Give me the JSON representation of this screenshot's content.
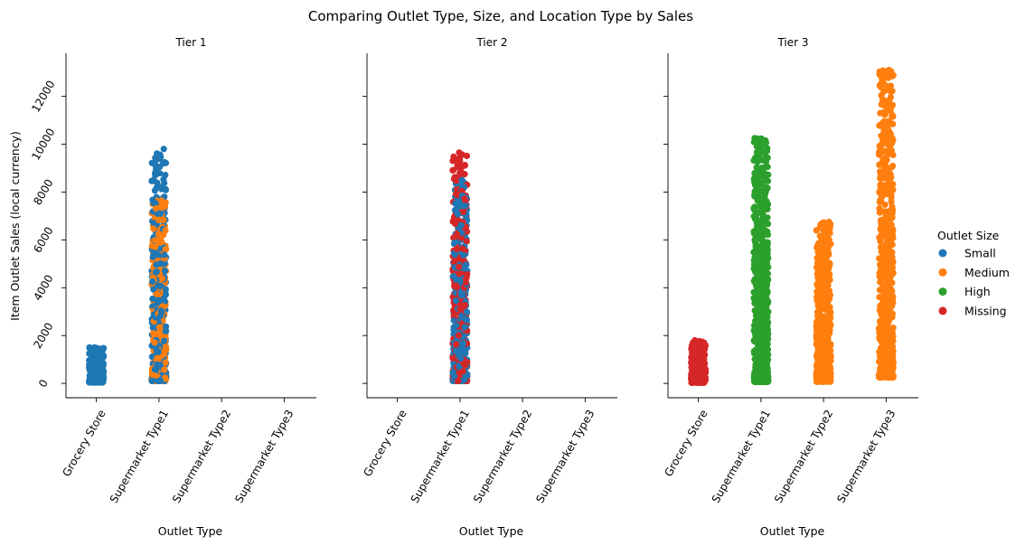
{
  "chart_data": {
    "type": "scatter",
    "subtype": "strip-plot-faceted",
    "title": "Comparing Outlet Type, Size, and Location Type by Sales",
    "xlabel": "Outlet Type",
    "ylabel": "Item Outlet Sales (local currency)",
    "categories": [
      "Grocery Store",
      "Supermarket Type1",
      "Supermarket Type2",
      "Supermarket Type3"
    ],
    "ylim": [
      -600,
      13800
    ],
    "yticks": [
      "0",
      "2000",
      "4000",
      "6000",
      "8000",
      "10000",
      "12000"
    ],
    "legend": {
      "title": "Outlet Size",
      "placement": "right",
      "entries": [
        {
          "name": "Small",
          "color": "#1f77b4"
        },
        {
          "name": "Medium",
          "color": "#ff7f0e"
        },
        {
          "name": "High",
          "color": "#2ca02c"
        },
        {
          "name": "Missing",
          "color": "#d62728"
        }
      ]
    },
    "panels": [
      {
        "title": "Tier 1",
        "groups": [
          {
            "category": "Grocery Store",
            "series": [
              {
                "name": "Small",
                "min": 40,
                "max": 1500,
                "count": 300
              }
            ]
          },
          {
            "category": "Supermarket Type1",
            "series": [
              {
                "name": "Small",
                "min": 100,
                "max": 9800,
                "count": 340
              },
              {
                "name": "Medium",
                "min": 100,
                "max": 7650,
                "count": 320
              }
            ]
          }
        ]
      },
      {
        "title": "Tier 2",
        "groups": [
          {
            "category": "Supermarket Type1",
            "series": [
              {
                "name": "Small",
                "min": 100,
                "max": 8500,
                "count": 340
              },
              {
                "name": "Missing",
                "min": 100,
                "max": 9650,
                "count": 340
              }
            ]
          }
        ]
      },
      {
        "title": "Tier 3",
        "groups": [
          {
            "category": "Grocery Store",
            "series": [
              {
                "name": "Missing",
                "min": 30,
                "max": 1800,
                "count": 300
              }
            ]
          },
          {
            "category": "Supermarket Type1",
            "series": [
              {
                "name": "High",
                "min": 60,
                "max": 10250,
                "count": 620
              }
            ]
          },
          {
            "category": "Supermarket Type2",
            "series": [
              {
                "name": "Medium",
                "min": 70,
                "max": 6750,
                "count": 600
              }
            ]
          },
          {
            "category": "Supermarket Type3",
            "series": [
              {
                "name": "Medium",
                "min": 250,
                "max": 13100,
                "count": 620
              }
            ]
          }
        ]
      }
    ]
  }
}
